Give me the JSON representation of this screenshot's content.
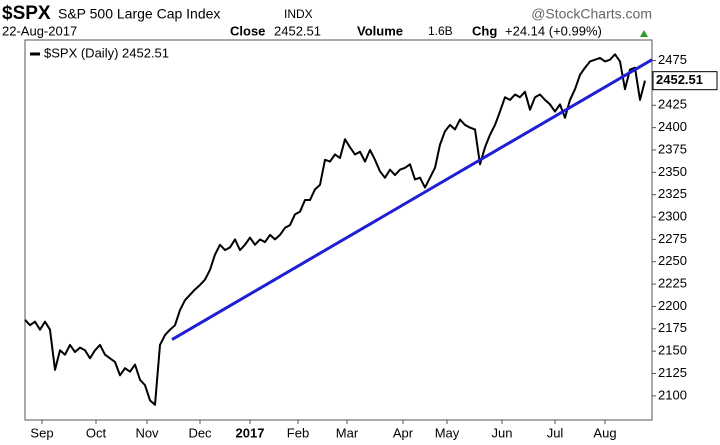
{
  "chart_data": {
    "type": "line",
    "symbol": "$SPX",
    "name": "S&P 500 Large Cap Index",
    "exchange": "INDX",
    "source": "@StockCharts.com",
    "date": "22-Aug-2017",
    "close_label": "Close",
    "volume_label": "Volume",
    "volume": "1.6B",
    "chg_label": "Chg",
    "chg": "+24.14 (+0.99%)",
    "series": [
      {
        "name": "$SPX (Daily) 2452.51",
        "color": "#000000",
        "values": [
          2185,
          2179,
          2183,
          2174,
          2183,
          2174,
          2129,
          2151,
          2146,
          2157,
          2149,
          2154,
          2151,
          2142,
          2151,
          2157,
          2146,
          2142,
          2138,
          2123,
          2131,
          2127,
          2135,
          2118,
          2112,
          2095,
          2090,
          2157,
          2168,
          2174,
          2179,
          2196,
          2207,
          2213,
          2219,
          2224,
          2230,
          2241,
          2258,
          2269,
          2263,
          2266,
          2275,
          2263,
          2269,
          2277,
          2269,
          2275,
          2272,
          2280,
          2275,
          2280,
          2288,
          2291,
          2303,
          2306,
          2319,
          2319,
          2331,
          2336,
          2364,
          2362,
          2370,
          2366,
          2387,
          2378,
          2370,
          2373,
          2362,
          2375,
          2364,
          2351,
          2344,
          2353,
          2347,
          2353,
          2355,
          2359,
          2342,
          2344,
          2333,
          2344,
          2355,
          2381,
          2396,
          2403,
          2398,
          2409,
          2403,
          2400,
          2398,
          2359,
          2378,
          2392,
          2403,
          2418,
          2434,
          2431,
          2437,
          2434,
          2440,
          2420,
          2434,
          2437,
          2431,
          2426,
          2418,
          2426,
          2411,
          2431,
          2443,
          2459,
          2467,
          2474,
          2476,
          2478,
          2474,
          2476,
          2482,
          2474,
          2443,
          2465,
          2467,
          2431,
          2452.51
        ]
      }
    ],
    "trendline": {
      "x": [
        29.4,
        125.4
      ],
      "y": [
        2163,
        2476
      ],
      "color": "#1f1fd6"
    },
    "xlim": [
      0,
      125.4
    ],
    "xticks": [
      {
        "value": 3.4,
        "label": "Sep"
      },
      {
        "value": 14.2,
        "label": "Oct"
      },
      {
        "value": 24.4,
        "label": "Nov"
      },
      {
        "value": 35,
        "label": "Dec"
      },
      {
        "value": 45,
        "label": "2017"
      },
      {
        "value": 54.6,
        "label": "Feb"
      },
      {
        "value": 64.4,
        "label": "Mar"
      },
      {
        "value": 75.6,
        "label": "Apr"
      },
      {
        "value": 84.4,
        "label": "May"
      },
      {
        "value": 95.4,
        "label": "Jun"
      },
      {
        "value": 106,
        "label": "Jul"
      },
      {
        "value": 116,
        "label": "Aug"
      }
    ],
    "ylim": [
      2073,
      2498
    ],
    "yticks": [
      2100,
      2125,
      2150,
      2175,
      2200,
      2225,
      2250,
      2275,
      2300,
      2325,
      2350,
      2375,
      2400,
      2425,
      2450,
      2475
    ],
    "grid": false
  }
}
